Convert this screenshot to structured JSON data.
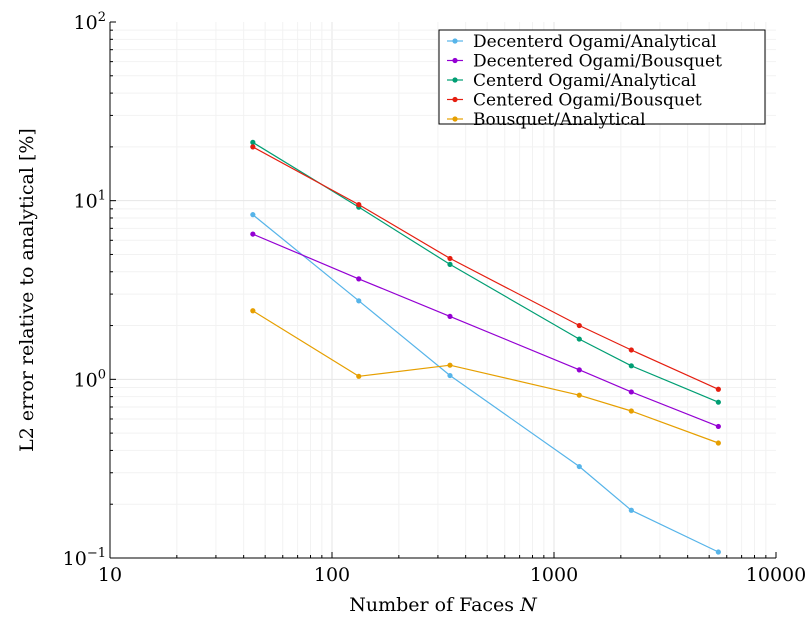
{
  "chart_data": {
    "type": "line",
    "xscale": "log",
    "yscale": "log",
    "xlabel": "Number of Faces",
    "xlabel_var": "N",
    "ylabel": "L2 error relative to analytical [%]",
    "xlim": [
      10,
      10000
    ],
    "ylim": [
      0.1,
      100
    ],
    "grid": true,
    "legend_position": "top-right",
    "xticks": [
      {
        "value": 10,
        "label": "10"
      },
      {
        "value": 100,
        "label": "100"
      },
      {
        "value": 1000,
        "label": "1000"
      },
      {
        "value": 10000,
        "label": "10000"
      }
    ],
    "yticks": [
      {
        "value": 0.1,
        "base": "10",
        "exp": "−1"
      },
      {
        "value": 1,
        "base": "10",
        "exp": "0"
      },
      {
        "value": 10,
        "base": "10",
        "exp": "1"
      },
      {
        "value": 100,
        "base": "10",
        "exp": "2"
      }
    ],
    "x": [
      44,
      132,
      340,
      1300,
      2230,
      5500
    ],
    "series": [
      {
        "name": "Decenterd Ogami/Analytical",
        "color": "#56b4e9",
        "values": [
          8.35,
          2.75,
          1.05,
          0.325,
          0.185,
          0.108
        ]
      },
      {
        "name": "Decentered Ogami/Bousquet",
        "color": "#9400d3",
        "values": [
          6.5,
          3.65,
          2.25,
          1.13,
          0.85,
          0.545
        ]
      },
      {
        "name": "Centerd Ogami/Analytical",
        "color": "#009e73",
        "values": [
          21.2,
          9.2,
          4.4,
          1.68,
          1.19,
          0.745
        ]
      },
      {
        "name": "Centered Ogami/Bousquet",
        "color": "#e51e10",
        "values": [
          20.0,
          9.5,
          4.75,
          2.0,
          1.46,
          0.88
        ]
      },
      {
        "name": "Bousquet/Analytical",
        "color": "#e69f00",
        "values": [
          2.42,
          1.04,
          1.2,
          0.815,
          0.665,
          0.44
        ]
      }
    ]
  }
}
